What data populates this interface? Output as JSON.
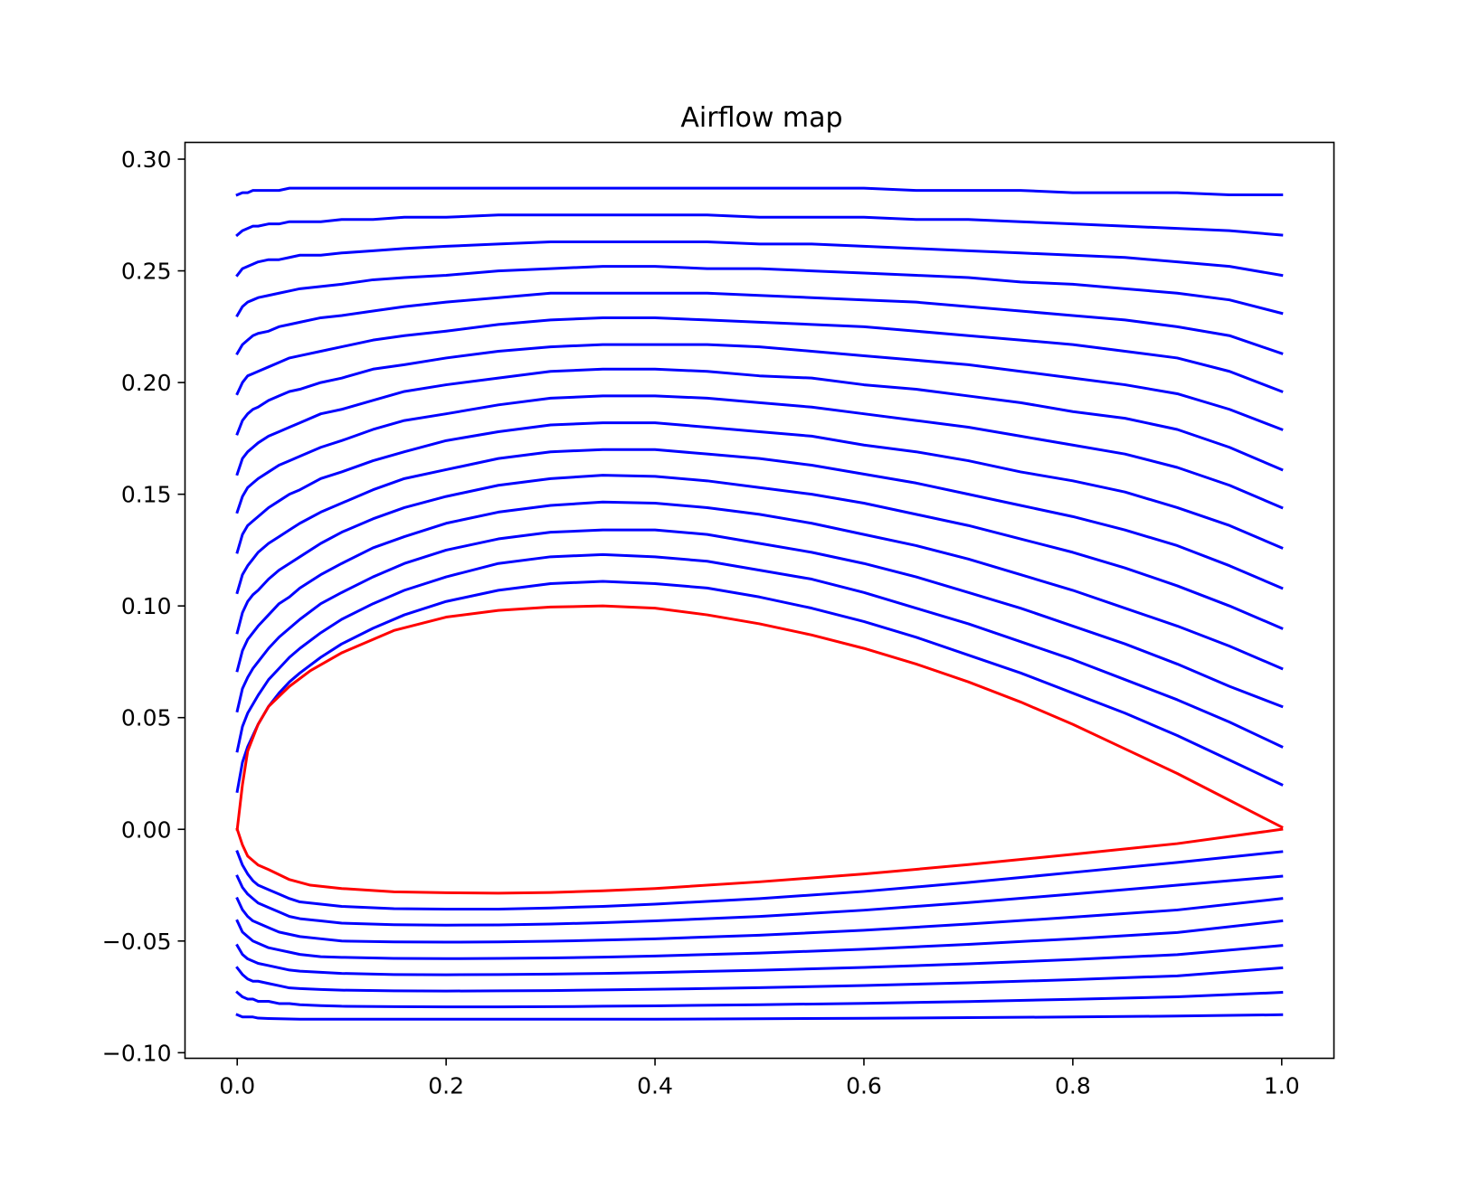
{
  "chart_data": {
    "type": "line",
    "title": "Airflow map",
    "xlabel": "",
    "ylabel": "",
    "xlim": [
      -0.05,
      1.05
    ],
    "ylim": [
      -0.1025,
      0.3075
    ],
    "x_ticks": [
      0.0,
      0.2,
      0.4,
      0.6,
      0.8,
      1.0
    ],
    "x_tick_labels": [
      "0.0",
      "0.2",
      "0.4",
      "0.6",
      "0.8",
      "1.0"
    ],
    "y_ticks": [
      -0.1,
      -0.05,
      0.0,
      0.05,
      0.1,
      0.15,
      0.2,
      0.25,
      0.3
    ],
    "y_tick_labels": [
      "−0.10",
      "−0.05",
      "0.00",
      "0.05",
      "0.10",
      "0.15",
      "0.20",
      "0.25",
      "0.30"
    ],
    "grid": false,
    "legend": "none",
    "colors": {
      "streamline": "#0000ff",
      "airfoil": "#ff0000",
      "axes": "#000000"
    },
    "airfoil": {
      "upper": {
        "x": [
          0.0,
          0.005,
          0.01,
          0.02,
          0.03,
          0.05,
          0.07,
          0.1,
          0.15,
          0.2,
          0.25,
          0.3,
          0.35,
          0.4,
          0.45,
          0.5,
          0.55,
          0.6,
          0.65,
          0.7,
          0.75,
          0.8,
          0.85,
          0.9,
          0.95,
          1.0
        ],
        "y": [
          0.0,
          0.02,
          0.035,
          0.047,
          0.055,
          0.064,
          0.071,
          0.079,
          0.089,
          0.095,
          0.098,
          0.0995,
          0.1,
          0.099,
          0.096,
          0.092,
          0.087,
          0.081,
          0.074,
          0.066,
          0.057,
          0.047,
          0.036,
          0.025,
          0.013,
          0.001
        ]
      },
      "lower": {
        "x": [
          0.0,
          0.005,
          0.01,
          0.02,
          0.03,
          0.05,
          0.07,
          0.1,
          0.15,
          0.2,
          0.25,
          0.3,
          0.35,
          0.4,
          0.5,
          0.6,
          0.7,
          0.8,
          0.9,
          1.0
        ],
        "y": [
          0.0,
          -0.007,
          -0.012,
          -0.016,
          -0.018,
          -0.0225,
          -0.025,
          -0.0265,
          -0.028,
          -0.0284,
          -0.0286,
          -0.0283,
          -0.0275,
          -0.0265,
          -0.0235,
          -0.02,
          -0.0158,
          -0.0112,
          -0.0064,
          0.0
        ]
      }
    },
    "streamlines_above": {
      "x": [
        0.0,
        0.005,
        0.01,
        0.015,
        0.02,
        0.03,
        0.04,
        0.05,
        0.06,
        0.08,
        0.1,
        0.13,
        0.16,
        0.2,
        0.25,
        0.3,
        0.35,
        0.4,
        0.45,
        0.5,
        0.55,
        0.6,
        0.65,
        0.7,
        0.75,
        0.8,
        0.85,
        0.9,
        0.95,
        1.0
      ],
      "series": [
        {
          "y": [
            0.017,
            0.03,
            0.037,
            0.042,
            0.047,
            0.055,
            0.061,
            0.066,
            0.07,
            0.077,
            0.083,
            0.09,
            0.096,
            0.102,
            0.107,
            0.11,
            0.111,
            0.11,
            0.108,
            0.104,
            0.099,
            0.093,
            0.086,
            0.078,
            0.07,
            0.061,
            0.052,
            0.042,
            0.031,
            0.02
          ]
        },
        {
          "y": [
            0.035,
            0.046,
            0.052,
            0.056,
            0.06,
            0.067,
            0.072,
            0.077,
            0.081,
            0.088,
            0.094,
            0.101,
            0.107,
            0.113,
            0.119,
            0.122,
            0.123,
            0.122,
            0.12,
            0.116,
            0.112,
            0.106,
            0.099,
            0.092,
            0.084,
            0.076,
            0.067,
            0.058,
            0.048,
            0.037
          ]
        },
        {
          "y": [
            0.053,
            0.063,
            0.068,
            0.072,
            0.075,
            0.081,
            0.086,
            0.09,
            0.094,
            0.101,
            0.106,
            0.113,
            0.119,
            0.125,
            0.13,
            0.133,
            0.134,
            0.134,
            0.132,
            0.128,
            0.124,
            0.119,
            0.113,
            0.106,
            0.099,
            0.091,
            0.083,
            0.074,
            0.064,
            0.055
          ]
        },
        {
          "y": [
            0.071,
            0.08,
            0.085,
            0.088,
            0.091,
            0.096,
            0.101,
            0.104,
            0.108,
            0.114,
            0.119,
            0.126,
            0.131,
            0.137,
            0.142,
            0.145,
            0.1465,
            0.146,
            0.144,
            0.141,
            0.137,
            0.132,
            0.127,
            0.121,
            0.114,
            0.107,
            0.099,
            0.091,
            0.082,
            0.072
          ]
        },
        {
          "y": [
            0.088,
            0.097,
            0.102,
            0.105,
            0.107,
            0.112,
            0.116,
            0.119,
            0.122,
            0.128,
            0.133,
            0.139,
            0.144,
            0.149,
            0.154,
            0.157,
            0.1585,
            0.158,
            0.156,
            0.153,
            0.15,
            0.146,
            0.141,
            0.136,
            0.13,
            0.124,
            0.117,
            0.109,
            0.1,
            0.09
          ]
        },
        {
          "y": [
            0.106,
            0.114,
            0.118,
            0.121,
            0.124,
            0.128,
            0.131,
            0.134,
            0.137,
            0.142,
            0.146,
            0.152,
            0.157,
            0.161,
            0.166,
            0.169,
            0.17,
            0.17,
            0.168,
            0.166,
            0.163,
            0.159,
            0.155,
            0.15,
            0.145,
            0.14,
            0.134,
            0.127,
            0.118,
            0.108
          ]
        },
        {
          "y": [
            0.124,
            0.132,
            0.136,
            0.138,
            0.14,
            0.144,
            0.147,
            0.15,
            0.152,
            0.157,
            0.16,
            0.165,
            0.169,
            0.174,
            0.178,
            0.181,
            0.182,
            0.182,
            0.18,
            0.178,
            0.176,
            0.172,
            0.169,
            0.165,
            0.16,
            0.156,
            0.151,
            0.144,
            0.136,
            0.126
          ]
        },
        {
          "y": [
            0.142,
            0.149,
            0.153,
            0.155,
            0.157,
            0.16,
            0.163,
            0.165,
            0.167,
            0.171,
            0.174,
            0.179,
            0.183,
            0.186,
            0.19,
            0.193,
            0.194,
            0.194,
            0.193,
            0.191,
            0.189,
            0.186,
            0.183,
            0.18,
            0.176,
            0.172,
            0.168,
            0.162,
            0.154,
            0.144
          ]
        },
        {
          "y": [
            0.159,
            0.166,
            0.169,
            0.171,
            0.173,
            0.176,
            0.178,
            0.18,
            0.182,
            0.186,
            0.188,
            0.192,
            0.196,
            0.199,
            0.202,
            0.205,
            0.206,
            0.206,
            0.205,
            0.203,
            0.202,
            0.199,
            0.197,
            0.194,
            0.191,
            0.187,
            0.184,
            0.179,
            0.171,
            0.161
          ]
        },
        {
          "y": [
            0.177,
            0.183,
            0.186,
            0.188,
            0.189,
            0.192,
            0.194,
            0.196,
            0.197,
            0.2,
            0.202,
            0.206,
            0.208,
            0.211,
            0.214,
            0.216,
            0.217,
            0.217,
            0.217,
            0.216,
            0.214,
            0.212,
            0.21,
            0.208,
            0.205,
            0.202,
            0.199,
            0.195,
            0.188,
            0.179
          ]
        },
        {
          "y": [
            0.195,
            0.2,
            0.203,
            0.204,
            0.205,
            0.207,
            0.209,
            0.211,
            0.212,
            0.214,
            0.216,
            0.219,
            0.221,
            0.223,
            0.226,
            0.228,
            0.229,
            0.229,
            0.228,
            0.227,
            0.226,
            0.225,
            0.223,
            0.221,
            0.219,
            0.217,
            0.214,
            0.211,
            0.205,
            0.196
          ]
        },
        {
          "y": [
            0.213,
            0.217,
            0.219,
            0.221,
            0.222,
            0.223,
            0.225,
            0.226,
            0.227,
            0.229,
            0.23,
            0.232,
            0.234,
            0.236,
            0.238,
            0.24,
            0.24,
            0.24,
            0.24,
            0.239,
            0.238,
            0.237,
            0.236,
            0.234,
            0.232,
            0.23,
            0.228,
            0.225,
            0.221,
            0.213
          ]
        },
        {
          "y": [
            0.23,
            0.234,
            0.236,
            0.237,
            0.238,
            0.239,
            0.24,
            0.241,
            0.242,
            0.243,
            0.244,
            0.246,
            0.247,
            0.248,
            0.25,
            0.251,
            0.252,
            0.252,
            0.251,
            0.251,
            0.25,
            0.249,
            0.248,
            0.247,
            0.245,
            0.244,
            0.242,
            0.24,
            0.237,
            0.231
          ]
        },
        {
          "y": [
            0.248,
            0.251,
            0.252,
            0.253,
            0.254,
            0.255,
            0.255,
            0.256,
            0.257,
            0.257,
            0.258,
            0.259,
            0.26,
            0.261,
            0.262,
            0.263,
            0.263,
            0.263,
            0.263,
            0.262,
            0.262,
            0.261,
            0.26,
            0.259,
            0.258,
            0.257,
            0.256,
            0.254,
            0.252,
            0.248
          ]
        },
        {
          "y": [
            0.266,
            0.268,
            0.269,
            0.27,
            0.27,
            0.271,
            0.271,
            0.272,
            0.272,
            0.272,
            0.273,
            0.273,
            0.274,
            0.274,
            0.275,
            0.275,
            0.275,
            0.275,
            0.275,
            0.274,
            0.274,
            0.274,
            0.273,
            0.273,
            0.272,
            0.271,
            0.27,
            0.269,
            0.268,
            0.266
          ]
        },
        {
          "y": [
            0.284,
            0.285,
            0.285,
            0.286,
            0.286,
            0.286,
            0.286,
            0.287,
            0.287,
            0.287,
            0.287,
            0.287,
            0.287,
            0.287,
            0.287,
            0.287,
            0.287,
            0.287,
            0.287,
            0.287,
            0.287,
            0.287,
            0.286,
            0.286,
            0.286,
            0.285,
            0.285,
            0.285,
            0.284,
            0.284
          ]
        }
      ]
    },
    "streamlines_below": {
      "x": [
        0.0,
        0.005,
        0.01,
        0.015,
        0.02,
        0.03,
        0.04,
        0.05,
        0.06,
        0.08,
        0.1,
        0.15,
        0.2,
        0.25,
        0.3,
        0.35,
        0.4,
        0.5,
        0.6,
        0.7,
        0.8,
        0.9,
        1.0
      ],
      "series": [
        {
          "y": [
            -0.01,
            -0.016,
            -0.02,
            -0.023,
            -0.025,
            -0.027,
            -0.029,
            -0.031,
            -0.0325,
            -0.0335,
            -0.0345,
            -0.0355,
            -0.0357,
            -0.0357,
            -0.0352,
            -0.0345,
            -0.0335,
            -0.031,
            -0.0278,
            -0.0238,
            -0.0193,
            -0.0148,
            -0.01
          ]
        },
        {
          "y": [
            -0.021,
            -0.026,
            -0.029,
            -0.031,
            -0.033,
            -0.035,
            -0.037,
            -0.039,
            -0.04,
            -0.041,
            -0.042,
            -0.0427,
            -0.0429,
            -0.0428,
            -0.0424,
            -0.0418,
            -0.041,
            -0.039,
            -0.0362,
            -0.0328,
            -0.029,
            -0.025,
            -0.021
          ]
        },
        {
          "y": [
            -0.031,
            -0.036,
            -0.039,
            -0.041,
            -0.042,
            -0.044,
            -0.046,
            -0.047,
            -0.048,
            -0.049,
            -0.05,
            -0.0504,
            -0.0505,
            -0.0504,
            -0.0501,
            -0.0496,
            -0.049,
            -0.0474,
            -0.0452,
            -0.0424,
            -0.0393,
            -0.0361,
            -0.031
          ]
        },
        {
          "y": [
            -0.041,
            -0.046,
            -0.048,
            -0.05,
            -0.051,
            -0.053,
            -0.054,
            -0.055,
            -0.056,
            -0.057,
            -0.0573,
            -0.0578,
            -0.0579,
            -0.0578,
            -0.0576,
            -0.0572,
            -0.0567,
            -0.0554,
            -0.0537,
            -0.0515,
            -0.049,
            -0.0462,
            -0.041
          ]
        },
        {
          "y": [
            -0.052,
            -0.056,
            -0.058,
            -0.059,
            -0.06,
            -0.061,
            -0.062,
            -0.063,
            -0.0635,
            -0.064,
            -0.0645,
            -0.065,
            -0.0651,
            -0.065,
            -0.0648,
            -0.0645,
            -0.0641,
            -0.0631,
            -0.0618,
            -0.0602,
            -0.0583,
            -0.0561,
            -0.052
          ]
        },
        {
          "y": [
            -0.062,
            -0.065,
            -0.067,
            -0.068,
            -0.068,
            -0.069,
            -0.07,
            -0.071,
            -0.0713,
            -0.0717,
            -0.072,
            -0.0723,
            -0.0724,
            -0.0723,
            -0.0722,
            -0.0719,
            -0.0716,
            -0.0709,
            -0.0699,
            -0.0687,
            -0.0673,
            -0.0656,
            -0.062
          ]
        },
        {
          "y": [
            -0.073,
            -0.075,
            -0.076,
            -0.076,
            -0.077,
            -0.077,
            -0.078,
            -0.078,
            -0.0785,
            -0.0789,
            -0.0792,
            -0.0794,
            -0.0795,
            -0.0795,
            -0.0794,
            -0.0792,
            -0.079,
            -0.0785,
            -0.0779,
            -0.0771,
            -0.0761,
            -0.075,
            -0.073
          ]
        },
        {
          "y": [
            -0.083,
            -0.084,
            -0.084,
            -0.084,
            -0.0845,
            -0.0847,
            -0.0848,
            -0.0849,
            -0.085,
            -0.085,
            -0.085,
            -0.085,
            -0.085,
            -0.085,
            -0.085,
            -0.085,
            -0.085,
            -0.0848,
            -0.0846,
            -0.0843,
            -0.084,
            -0.0836,
            -0.083
          ]
        }
      ]
    }
  }
}
